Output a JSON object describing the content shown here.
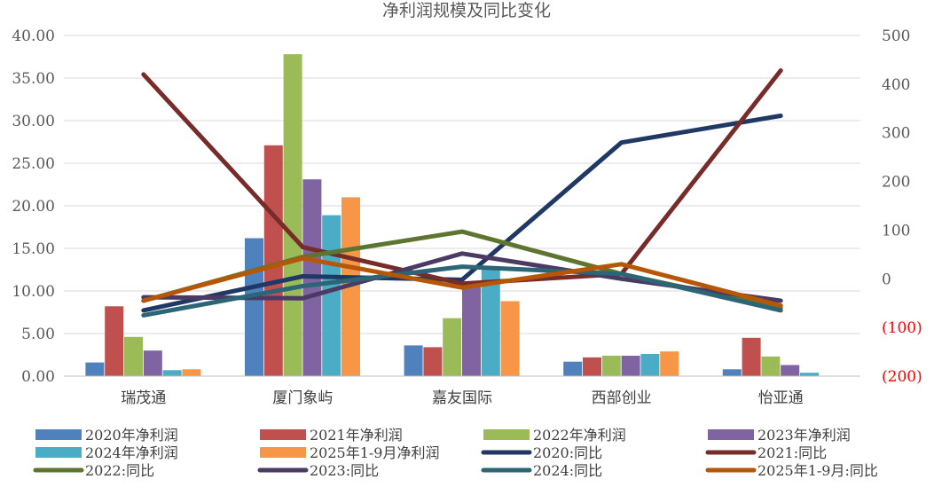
{
  "chart_data": {
    "type": "bar+line",
    "title": "净利润规模及同比变化",
    "categories": [
      "瑞茂通",
      "厦门象屿",
      "嘉友国际",
      "西部创业",
      "怡亚通"
    ],
    "left_axis": {
      "min": 0,
      "max": 40,
      "step": 5,
      "tick_labels": [
        "0.00",
        "5.00",
        "10.00",
        "15.00",
        "20.00",
        "25.00",
        "30.00",
        "35.00",
        "40.00"
      ]
    },
    "right_axis": {
      "min": -200,
      "max": 500,
      "step": 100,
      "tick_labels": [
        "(200)",
        "(100)",
        "0",
        "100",
        "200",
        "300",
        "400",
        "500"
      ],
      "negative_color": "#ff0000"
    },
    "bar_series": [
      {
        "name": "2020年净利润",
        "color": "#4f81bd",
        "values": [
          1.6,
          16.2,
          3.6,
          1.7,
          0.8
        ]
      },
      {
        "name": "2021年净利润",
        "color": "#c0504d",
        "values": [
          8.2,
          27.1,
          3.4,
          2.2,
          4.5
        ]
      },
      {
        "name": "2022年净利润",
        "color": "#9bbb59",
        "values": [
          4.6,
          37.8,
          6.8,
          2.4,
          2.3
        ]
      },
      {
        "name": "2023年净利润",
        "color": "#8064a2",
        "values": [
          3.0,
          23.1,
          11.0,
          2.4,
          1.3
        ]
      },
      {
        "name": "2024年净利润",
        "color": "#4bacc6",
        "values": [
          0.7,
          18.9,
          12.7,
          2.6,
          0.4
        ]
      },
      {
        "name": "2025年1-9月净利润",
        "color": "#f79646",
        "values": [
          0.8,
          21.0,
          8.8,
          2.9,
          0.05
        ]
      }
    ],
    "line_series": [
      {
        "name": "2020:同比",
        "color": "#1f3864",
        "values": [
          -65,
          5,
          -2,
          280,
          335
        ]
      },
      {
        "name": "2021:同比",
        "color": "#772c2a",
        "values": [
          420,
          65,
          -10,
          10,
          428
        ]
      },
      {
        "name": "2022:同比",
        "color": "#5e7530",
        "values": [
          -45,
          45,
          97,
          10,
          -60
        ]
      },
      {
        "name": "2023:同比",
        "color": "#4b3a63",
        "values": [
          -38,
          -40,
          52,
          0,
          -45
        ]
      },
      {
        "name": "2024:同比",
        "color": "#2b6576",
        "values": [
          -75,
          -15,
          25,
          10,
          -65
        ]
      },
      {
        "name": "2025年1-9月:同比",
        "color": "#b65708",
        "values": [
          -45,
          42,
          -18,
          30,
          -55
        ]
      }
    ],
    "legend": {
      "position": "bottom",
      "rows": [
        [
          "2020年净利润",
          "2021年净利润",
          "2022年净利润",
          "2023年净利润"
        ],
        [
          "2024年净利润",
          "2025年1-9月净利润",
          "2020:同比",
          "2021:同比"
        ],
        [
          "2022:同比",
          "2023:同比",
          "2024:同比",
          "2025年1-9月:同比"
        ]
      ]
    },
    "grid": true
  }
}
